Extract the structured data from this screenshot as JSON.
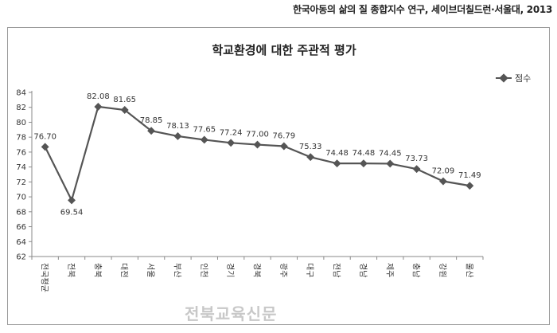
{
  "source_text": "한국아동의 삶의 질 종합지수 연구, 세이브더칠드런·서울대, 2013",
  "watermark": "전북교육신문",
  "chart_data": {
    "type": "line",
    "title": "학교환경에 대한 주관적 평가",
    "xlabel": "",
    "ylabel": "",
    "categories": [
      "전국평균",
      "전북",
      "충북",
      "대전",
      "서울",
      "부산",
      "인천",
      "경기",
      "경북",
      "광주",
      "대구",
      "전남",
      "경남",
      "제주",
      "충남",
      "강원",
      "울산"
    ],
    "series": [
      {
        "name": "점수",
        "values": [
          76.7,
          69.54,
          82.08,
          81.65,
          78.85,
          78.13,
          77.65,
          77.24,
          77.0,
          76.79,
          75.33,
          74.48,
          74.48,
          74.45,
          73.73,
          72.09,
          71.49
        ],
        "labels": [
          "76.70",
          "69.54",
          "82.08",
          "81.65",
          "78.85",
          "78.13",
          "77.65",
          "77.24",
          "77.00",
          "76.79",
          "75.33",
          "74.48",
          "74.48",
          "74.45",
          "73.73",
          "72.09",
          "71.49"
        ],
        "color": "#555555"
      }
    ],
    "ylim": [
      62,
      84
    ],
    "yticks": [
      62,
      64,
      66,
      68,
      70,
      72,
      74,
      76,
      78,
      80,
      82,
      84
    ],
    "grid": false,
    "legend_position": "top-right"
  }
}
